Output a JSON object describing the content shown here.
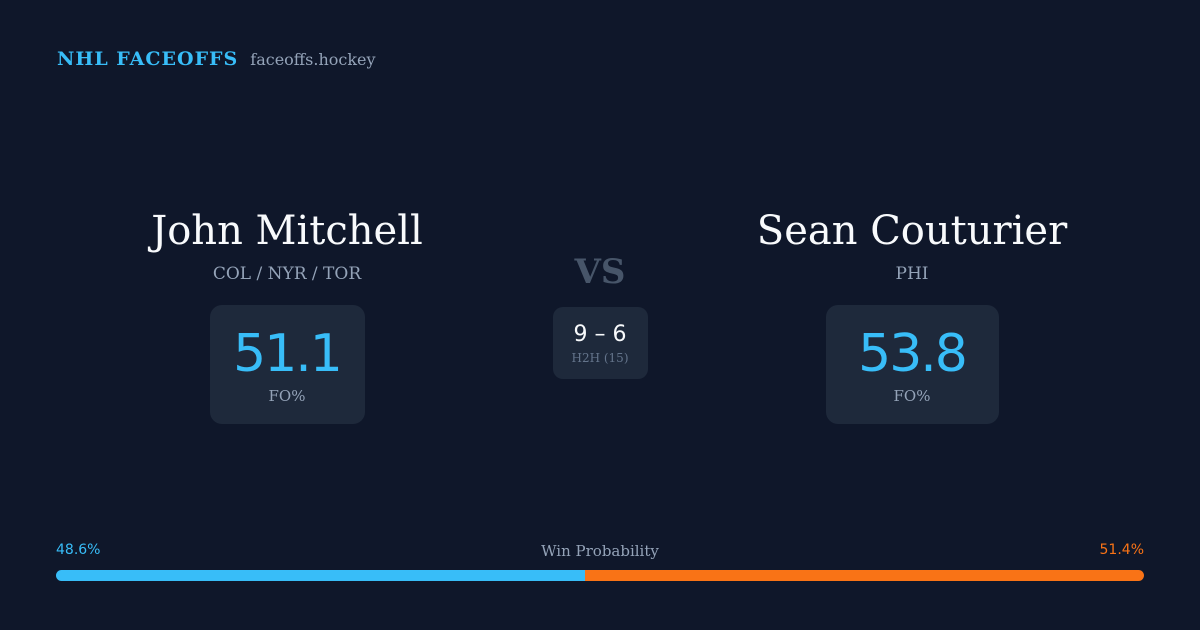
{
  "header": {
    "title": "NHL FACEOFFS",
    "domain": "faceoffs.hockey"
  },
  "player_left": {
    "name": "John Mitchell",
    "teams": "COL / NYR / TOR",
    "fo_pct": "51.1",
    "fo_label": "FO%"
  },
  "matchup": {
    "vs": "VS",
    "h2h_score": "9 – 6",
    "h2h_label": "H2H (15)"
  },
  "player_right": {
    "name": "Sean Couturier",
    "teams": "PHI",
    "fo_pct": "53.8",
    "fo_label": "FO%"
  },
  "win_probability": {
    "title": "Win Probability",
    "left_label": "48.6%",
    "right_label": "51.4%",
    "left_value": 48.6,
    "right_value": 51.4
  },
  "colors": {
    "background": "#0f172a",
    "card": "#1e293b",
    "accent_blue": "#38bdf8",
    "accent_orange": "#f97316",
    "muted_text": "#94a3b8"
  }
}
